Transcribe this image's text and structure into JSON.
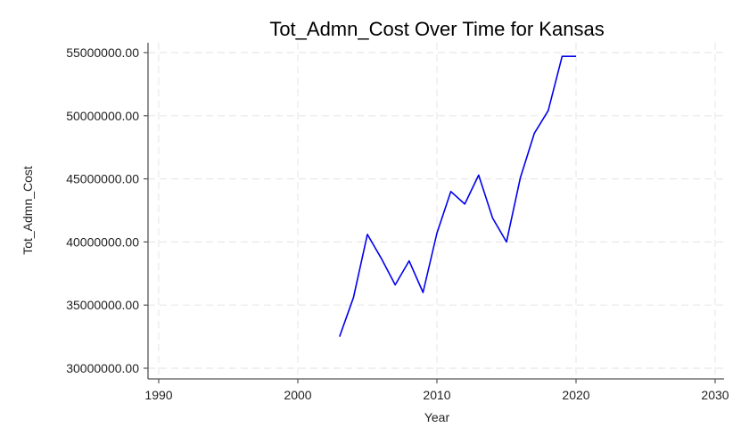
{
  "chart_data": {
    "type": "line",
    "title": "Tot_Admn_Cost Over Time for Kansas",
    "xlabel": "Year",
    "ylabel": "Tot_Admn_Cost",
    "xlim": [
      1990,
      2030
    ],
    "ylim": [
      30000000,
      55000000
    ],
    "x_ticks": [
      1990,
      2000,
      2010,
      2020,
      2030
    ],
    "x_tick_labels": [
      "1990",
      "2000",
      "2010",
      "2020",
      "2030"
    ],
    "y_ticks": [
      30000000,
      35000000,
      40000000,
      45000000,
      50000000,
      55000000
    ],
    "y_tick_labels": [
      "30000000.00",
      "35000000.00",
      "40000000.00",
      "45000000.00",
      "50000000.00",
      "55000000.00"
    ],
    "grid": true,
    "series": [
      {
        "color": "#0000ee",
        "x": [
          2003,
          2004,
          2005,
          2006,
          2007,
          2008,
          2009,
          2010,
          2011,
          2012,
          2013,
          2014,
          2015,
          2016,
          2017,
          2018,
          2019,
          2020
        ],
        "y": [
          32500000,
          35600000,
          40600000,
          38700000,
          36600000,
          38500000,
          36000000,
          40700000,
          44000000,
          43000000,
          45300000,
          41900000,
          40000000,
          45100000,
          48600000,
          50400000,
          54700000,
          54700000
        ]
      }
    ]
  }
}
